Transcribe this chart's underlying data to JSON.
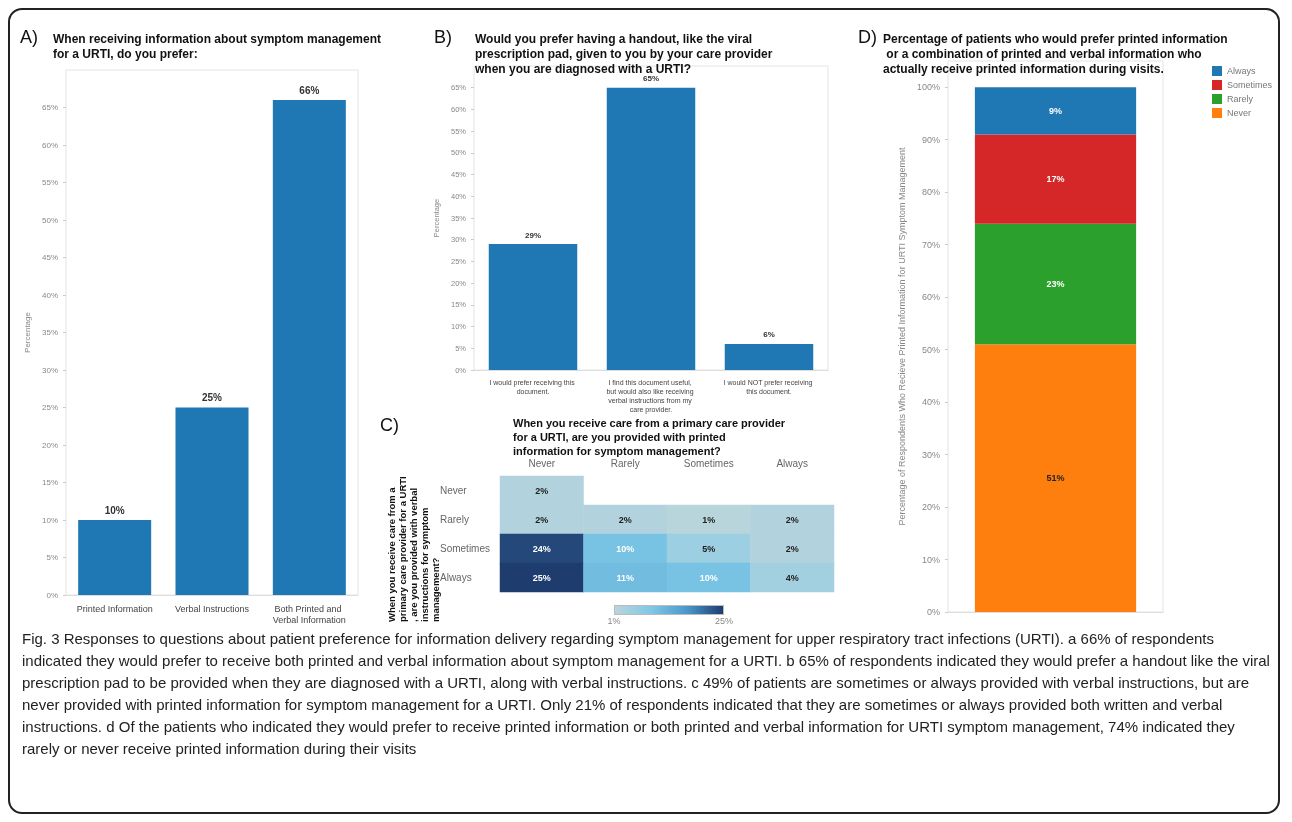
{
  "chart_data": [
    {
      "type": "bar",
      "title": "When receiving information about symptom management for a URTI, do you prefer:",
      "ylabel": "Percentage",
      "annotations": [
        "A)"
      ],
      "categories": [
        "Printed Information",
        "Verbal Instructions",
        "Both Printed and Verbal Information"
      ],
      "values": [
        10,
        25,
        66
      ],
      "value_labels": [
        "10%",
        "25%",
        "66%"
      ],
      "color": "#1f77b4",
      "ylim": [
        0,
        70
      ],
      "yticks": [
        {
          "value": 0,
          "label": "0%"
        },
        {
          "value": 5,
          "label": "5%"
        },
        {
          "value": 10,
          "label": "10%"
        },
        {
          "value": 15,
          "label": "15%"
        },
        {
          "value": 20,
          "label": "20%"
        },
        {
          "value": 25,
          "label": "25%"
        },
        {
          "value": 30,
          "label": "30%"
        },
        {
          "value": 35,
          "label": "35%"
        },
        {
          "value": 40,
          "label": "40%"
        },
        {
          "value": 45,
          "label": "45%"
        },
        {
          "value": 50,
          "label": "50%"
        },
        {
          "value": 55,
          "label": "55%"
        },
        {
          "value": 60,
          "label": "60%"
        },
        {
          "value": 65,
          "label": "65%"
        }
      ],
      "grid": false,
      "legend": false
    },
    {
      "type": "bar",
      "title": "Would you prefer having a handout, like the viral prescription pad, given to you by your care provider when you are diagnosed with a URTI?",
      "ylabel": "Percentage",
      "annotations": [
        "B)"
      ],
      "categories": [
        "I would prefer receiving this document.",
        "I find this document useful, but would also like receiving verbal instructions from my care provider.",
        "I would NOT prefer receiving this document."
      ],
      "values": [
        29,
        65,
        6
      ],
      "value_labels": [
        "29%",
        "65%",
        "6%"
      ],
      "color": "#1f77b4",
      "ylim": [
        0,
        70
      ],
      "yticks": [
        {
          "value": 0,
          "label": "0%"
        },
        {
          "value": 5,
          "label": "5%"
        },
        {
          "value": 10,
          "label": "10%"
        },
        {
          "value": 15,
          "label": "15%"
        },
        {
          "value": 20,
          "label": "20%"
        },
        {
          "value": 25,
          "label": "25%"
        },
        {
          "value": 30,
          "label": "30%"
        },
        {
          "value": 35,
          "label": "35%"
        },
        {
          "value": 40,
          "label": "40%"
        },
        {
          "value": 45,
          "label": "45%"
        },
        {
          "value": 50,
          "label": "50%"
        },
        {
          "value": 55,
          "label": "55%"
        },
        {
          "value": 60,
          "label": "60%"
        },
        {
          "value": 65,
          "label": "65%"
        }
      ],
      "grid": false,
      "legend": false
    },
    {
      "type": "heatmap",
      "xlabel": "When you receive care from a primary care provider for a URTI, are you provided with printed information for symptom management?",
      "ylabel": "When you receive care from a primary care provider for a URTI, are you provided with verbal instructions for symptom management?",
      "annotations": [
        "C)"
      ],
      "categories": [
        "Never",
        "Rarely",
        "Sometimes",
        "Always"
      ],
      "y_categories": [
        "Never",
        "Rarely",
        "Sometimes",
        "Always"
      ],
      "cells": [
        [
          2,
          null,
          null,
          null
        ],
        [
          2,
          2,
          1,
          2
        ],
        [
          24,
          10,
          5,
          2
        ],
        [
          25,
          11,
          10,
          4
        ]
      ],
      "cell_labels": [
        [
          "2%",
          null,
          null,
          null
        ],
        [
          "2%",
          "2%",
          "1%",
          "2%"
        ],
        [
          "24%",
          "10%",
          "5%",
          "2%"
        ],
        [
          "25%",
          "11%",
          "10%",
          "4%"
        ]
      ],
      "clim": [
        1,
        25
      ],
      "cticks": [
        {
          "value": 1,
          "label": "1%"
        },
        {
          "value": 25,
          "label": "25%"
        }
      ]
    },
    {
      "type": "bar",
      "stacked": true,
      "title": "Percentage of patients who would prefer printed information or a combination of printed and verbal information who actually receive printed information during visits.",
      "ylabel": "Percentage of Respondents Who Recieve Printed Information for URTI Symptom Management",
      "annotations": [
        "D)",
        "Fig. 3 Responses to questions about patient preference for information delivery regarding symptom management for upper respiratory tract infections (URTI). a 66% of respondents indicated they would prefer to receive both printed and verbal information about symptom management for a URTI. b 65% of respondents indicated they would prefer a handout like the viral prescription pad to be provided when they are diagnosed with a URTI, along with verbal instructions. c 49% of patients are sometimes or always provided with verbal instructions, but are never provided with printed information for symptom management for a URTI. Only 21% of respondents indicated that they are sometimes or always provided both written and verbal instructions. d Of the patients who indicated they would prefer to receive printed information or both printed and verbal information for URTI symptom management, 74% indicated they rarely or never receive printed information during their visits"
      ],
      "categories": [
        null
      ],
      "series": [
        {
          "name": "Never",
          "color": "#ff7f0e",
          "values": [
            51
          ],
          "value_labels": [
            "51%"
          ]
        },
        {
          "name": "Rarely",
          "color": "#2ca02c",
          "values": [
            23
          ],
          "value_labels": [
            "23%"
          ]
        },
        {
          "name": "Sometimes",
          "color": "#d62728",
          "values": [
            17
          ],
          "value_labels": [
            "17%"
          ]
        },
        {
          "name": "Always",
          "color": "#1f77b4",
          "values": [
            9
          ],
          "value_labels": [
            "9%"
          ]
        }
      ],
      "ylim": [
        0,
        105
      ],
      "yticks": [
        {
          "value": 0,
          "label": "0%"
        },
        {
          "value": 10,
          "label": "10%"
        },
        {
          "value": 20,
          "label": "20%"
        },
        {
          "value": 30,
          "label": "30%"
        },
        {
          "value": 40,
          "label": "40%"
        },
        {
          "value": 50,
          "label": "50%"
        },
        {
          "value": 60,
          "label": "60%"
        },
        {
          "value": 70,
          "label": "70%"
        },
        {
          "value": 80,
          "label": "80%"
        },
        {
          "value": 90,
          "label": "90%"
        },
        {
          "value": 100,
          "label": "100%"
        }
      ],
      "grid": false,
      "legend": "top right"
    }
  ]
}
